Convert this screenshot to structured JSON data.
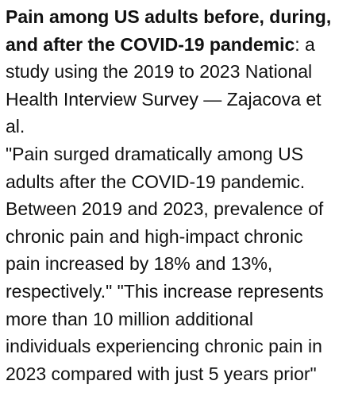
{
  "citation": {
    "title_lines": [
      "Pain among US adults before, during,",
      "and after the COVID-19 pandemic"
    ],
    "detail_lines": [
      ": a",
      "study using the 2019 to 2023 National",
      "Health Interview Survey — Zajacova et",
      "al."
    ]
  },
  "quote_lines": [
    "\"Pain surged dramatically among US",
    "adults after the COVID-19 pandemic.",
    "Between 2019 and 2023, prevalence of",
    "chronic pain and high-impact chronic",
    "pain increased by 18% and 13%,",
    "respectively.\" \"This increase represents",
    "more than 10 million additional",
    "individuals experiencing chronic pain in",
    "2023 compared with just 5 years prior\""
  ]
}
